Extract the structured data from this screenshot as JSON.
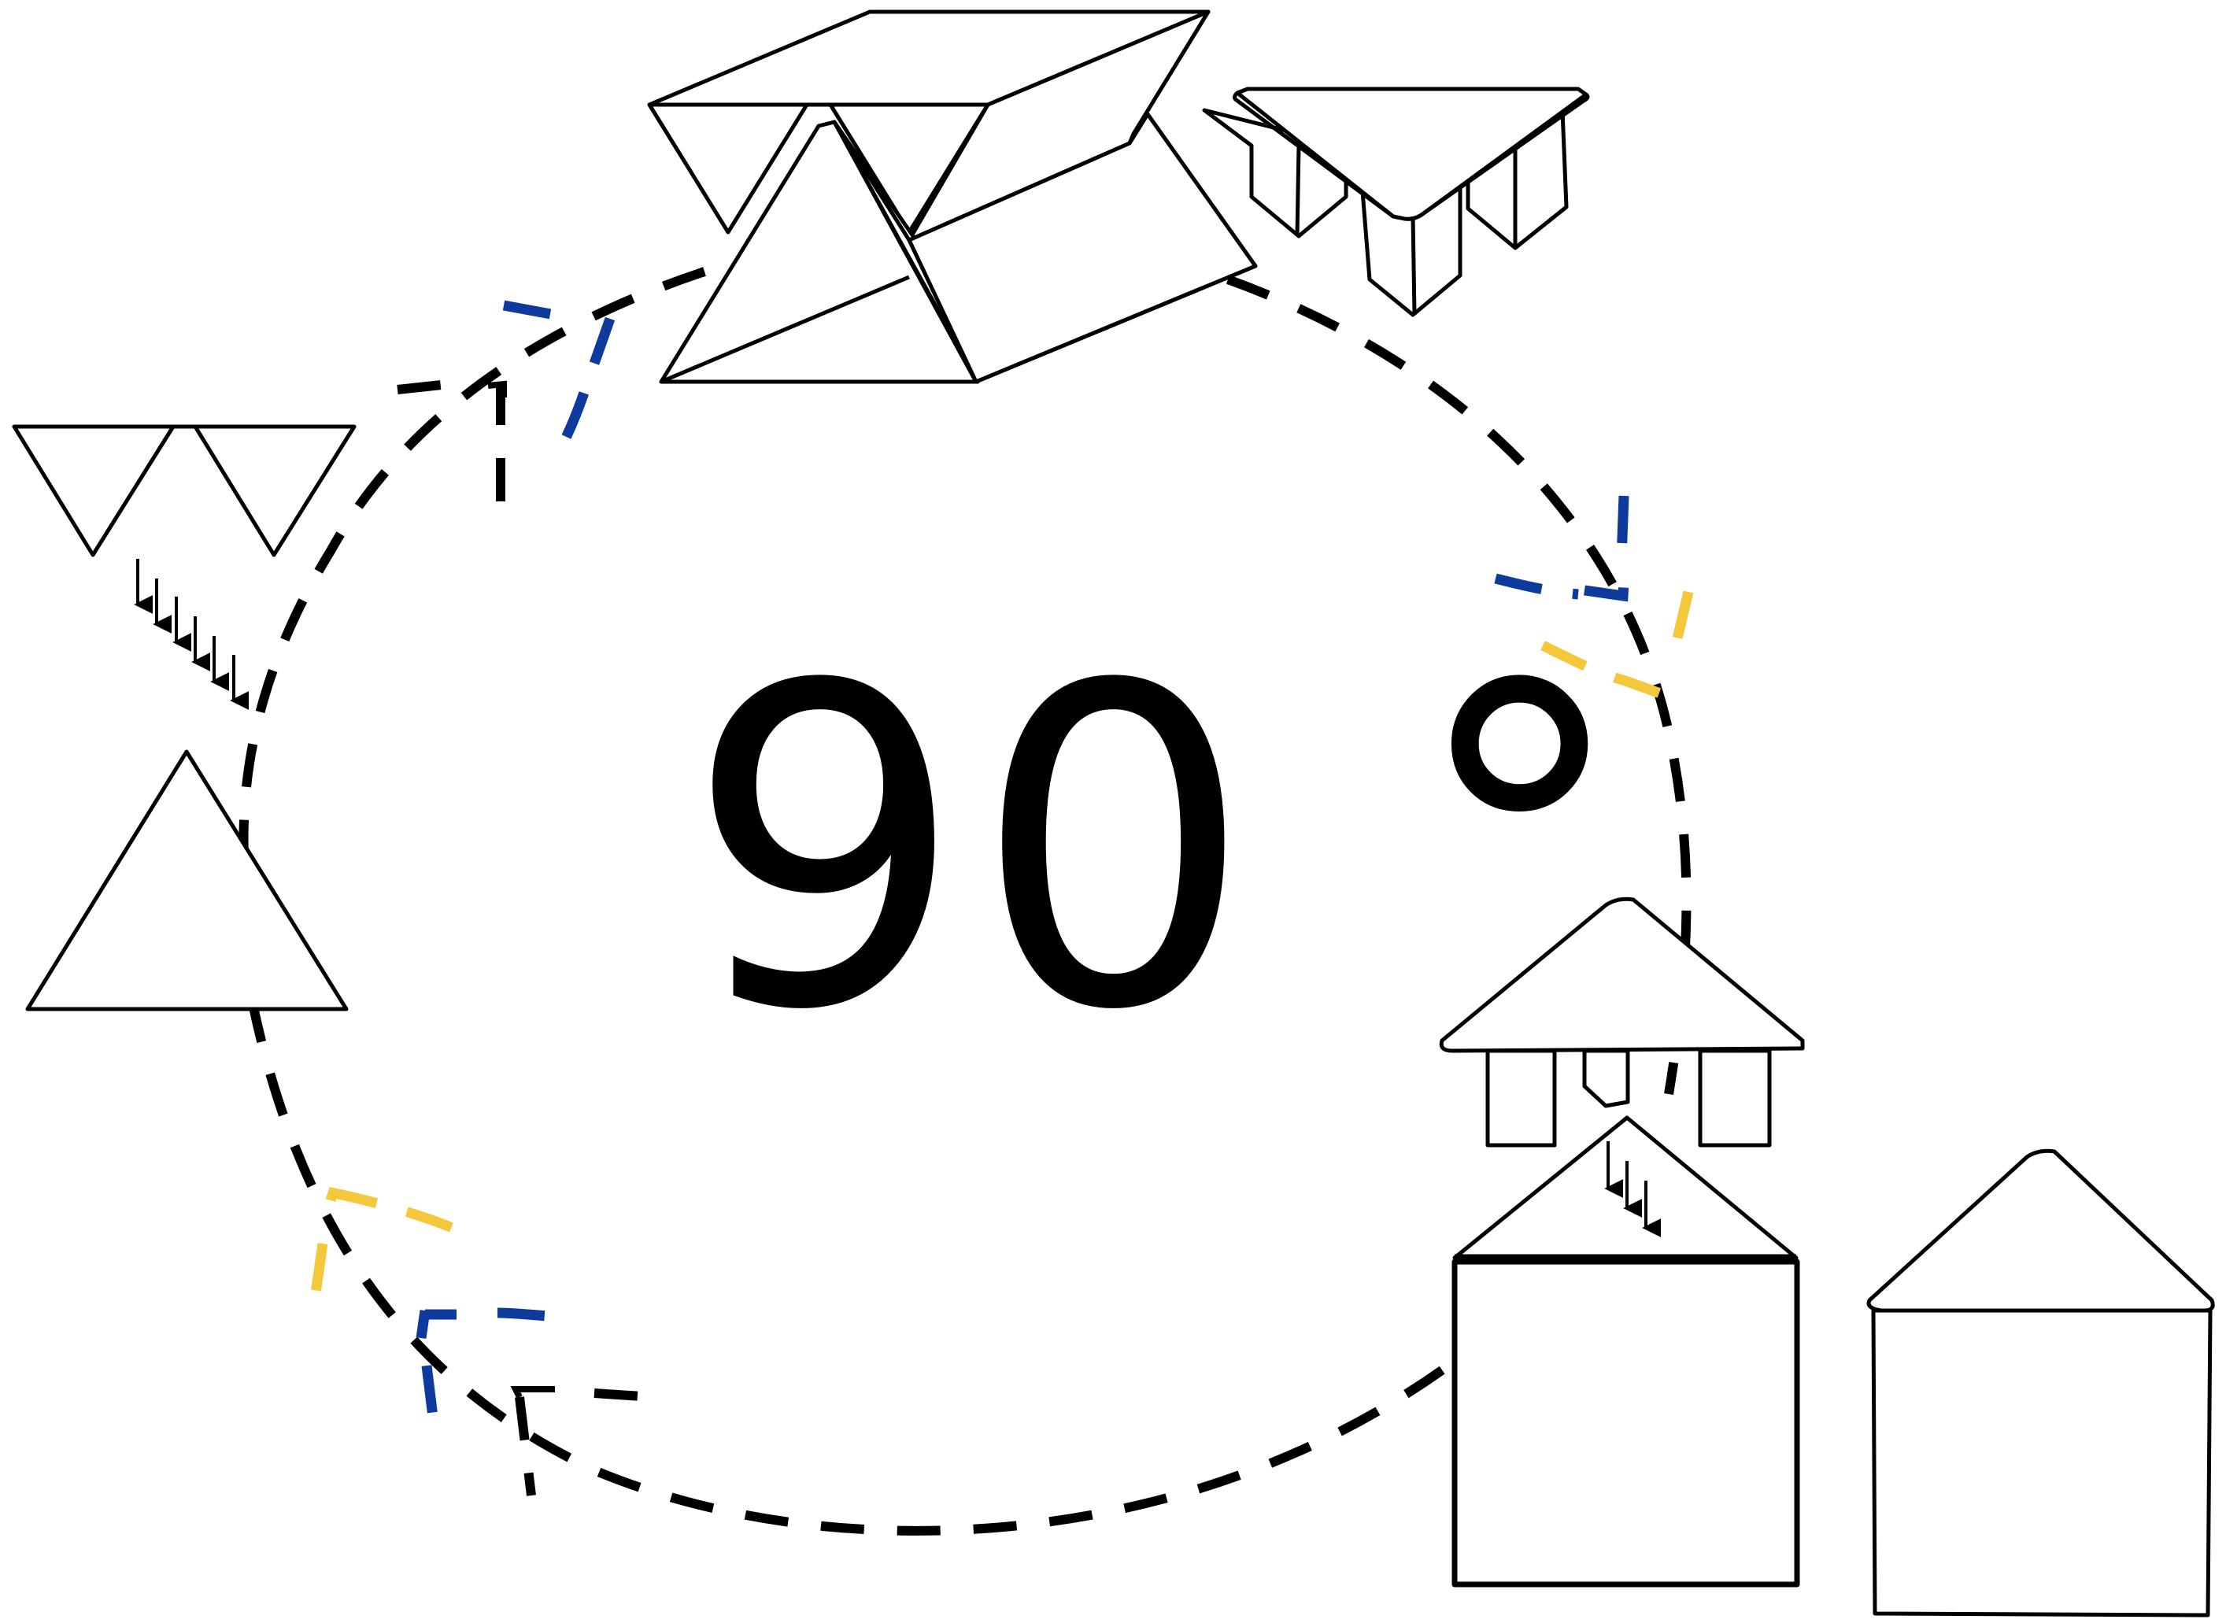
{
  "angle_label": "90 °",
  "colors": {
    "stroke": "#000000",
    "blue_accent": "#0d3a9c",
    "yellow_accent": "#f5c83c",
    "background": "#ffffff"
  },
  "icons": [
    "folding-shape-icon",
    "down-arrow-icon"
  ]
}
